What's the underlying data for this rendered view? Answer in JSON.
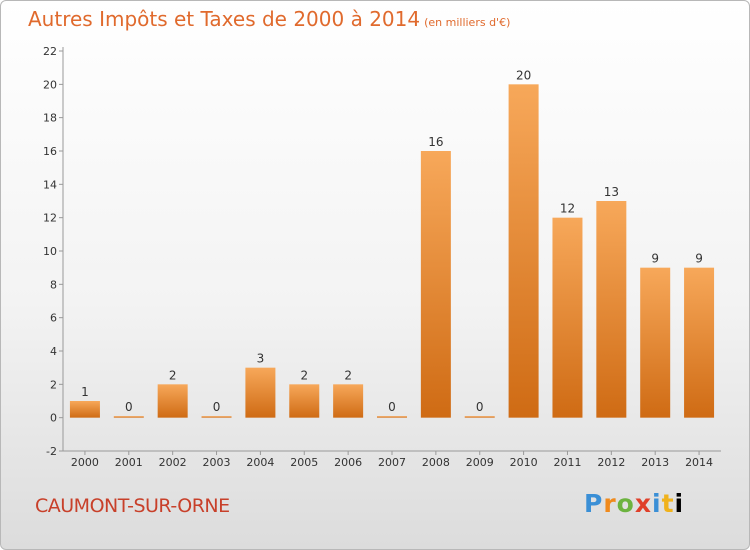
{
  "header": {
    "title": "Autres Impôts et Taxes de 2000 à 2014",
    "subtitle": "(en milliers d'€)"
  },
  "footer": {
    "commune": "CAUMONT-SUR-ORNE",
    "logo_text": "Proxiti"
  },
  "colors": {
    "bar_top": "#f7a85a",
    "bar_bottom": "#cf6b14",
    "title": "#e06a2d",
    "commune": "#c8402a"
  },
  "chart_data": {
    "type": "bar",
    "title": "Autres Impôts et Taxes de 2000 à 2014",
    "subtitle": "(en milliers d'€)",
    "categories": [
      "2000",
      "2001",
      "2002",
      "2003",
      "2004",
      "2005",
      "2006",
      "2007",
      "2008",
      "2009",
      "2010",
      "2011",
      "2012",
      "2013",
      "2014"
    ],
    "values": [
      1,
      0,
      2,
      0,
      3,
      2,
      2,
      0,
      16,
      0,
      20,
      12,
      13,
      9,
      9
    ],
    "ylim": [
      -2,
      22
    ],
    "yticks": [
      -2,
      0,
      2,
      4,
      6,
      8,
      10,
      12,
      14,
      16,
      18,
      20,
      22
    ],
    "grid": false,
    "xlabel": "",
    "ylabel": ""
  }
}
